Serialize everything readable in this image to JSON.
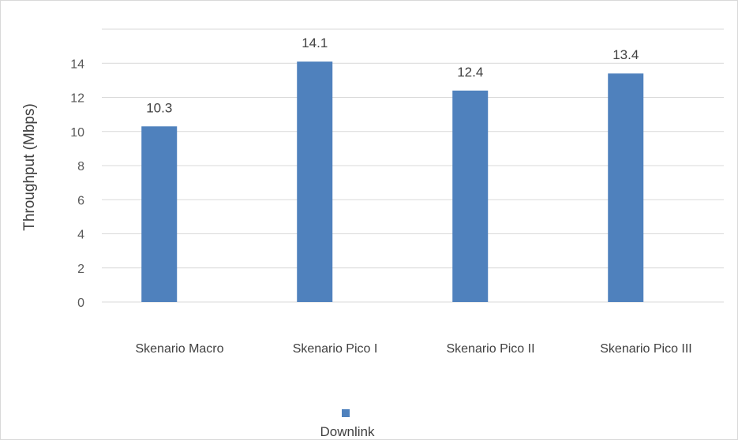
{
  "chart_data": {
    "type": "bar",
    "title": "",
    "xlabel": "",
    "ylabel": "Throughput (Mbps)",
    "ylim": [
      0,
      16
    ],
    "yticks": [
      0,
      2,
      4,
      6,
      8,
      10,
      12,
      14
    ],
    "grid": true,
    "legend_position": "bottom",
    "categories": [
      "Skenario Macro",
      "Skenario Pico I",
      "Skenario Pico II",
      "Skenario Pico III"
    ],
    "series": [
      {
        "name": "Downlink",
        "color": "#4f81bd",
        "values": [
          10.3,
          14.1,
          12.4,
          13.4
        ],
        "labels": [
          "10.3",
          "14.1",
          "12.4",
          "13.4"
        ]
      }
    ]
  }
}
